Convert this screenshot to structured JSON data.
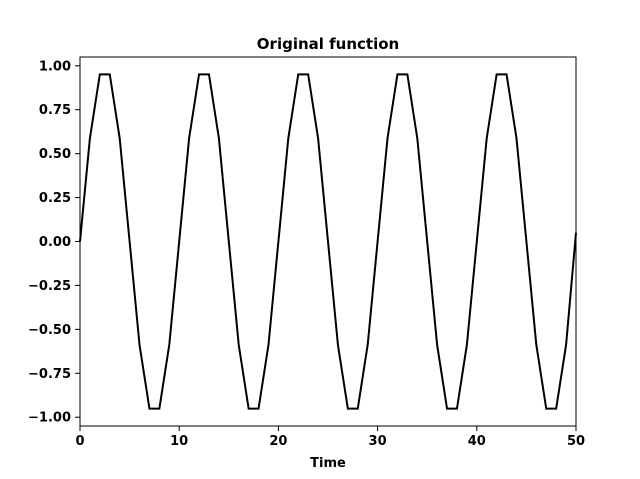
{
  "chart_data": {
    "type": "line",
    "title": "Original function",
    "xlabel": "Time",
    "ylabel": "",
    "xlim": [
      0,
      50
    ],
    "ylim": [
      -1.05,
      1.05
    ],
    "x_ticks": [
      0,
      10,
      20,
      30,
      40,
      50
    ],
    "x_tick_labels": [
      "0",
      "10",
      "20",
      "30",
      "40",
      "50"
    ],
    "y_ticks": [
      -1.0,
      -0.75,
      -0.5,
      -0.25,
      0.0,
      0.25,
      0.5,
      0.75,
      1.0
    ],
    "y_tick_labels": [
      "−1.00",
      "−0.75",
      "−0.50",
      "−0.25",
      "0.00",
      "0.25",
      "0.50",
      "0.75",
      "1.00"
    ],
    "grid": false,
    "line_color": "#000000",
    "series": [
      {
        "x": [
          0,
          1,
          2,
          3,
          4,
          5,
          6,
          7,
          8,
          9,
          10,
          11,
          12,
          13,
          14,
          15,
          16,
          17,
          18,
          19,
          20,
          21,
          22,
          23,
          24,
          25,
          26,
          27,
          28,
          29,
          30,
          31,
          32,
          33,
          34,
          35,
          36,
          37,
          38,
          39,
          40,
          41,
          42,
          43,
          44,
          45,
          46,
          47,
          48,
          49,
          50
        ],
        "y": [
          0,
          0.588,
          0.951,
          0.951,
          0.588,
          0,
          -0.588,
          -0.951,
          -0.951,
          -0.588,
          0,
          0.588,
          0.951,
          0.951,
          0.588,
          0,
          -0.588,
          -0.951,
          -0.951,
          -0.588,
          0,
          0.588,
          0.951,
          0.951,
          0.588,
          0,
          -0.588,
          -0.951,
          -0.951,
          -0.588,
          0,
          0.588,
          0.951,
          0.951,
          0.588,
          0,
          -0.588,
          -0.951,
          -0.951,
          -0.588,
          0,
          0.588,
          0.951,
          0.951,
          0.588,
          0,
          -0.588,
          -0.951,
          -0.951,
          -0.588,
          0.05
        ]
      }
    ]
  }
}
